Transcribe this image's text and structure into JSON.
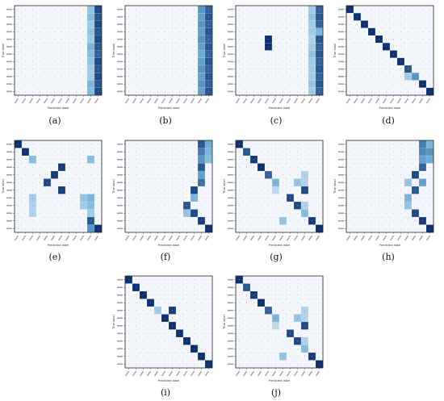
{
  "figure": {
    "captions": [
      "(a)",
      "(b)",
      "(c)",
      "(d)",
      "(e)",
      "(f)",
      "(g)",
      "(h)",
      "(i)",
      "(j)"
    ]
  },
  "chart_data": [
    {
      "type": "heatmap",
      "caption": "(a)",
      "xlabel": "Predicted label",
      "ylabel": "True label",
      "size": 12,
      "dark_cols": [
        11
      ],
      "light_cols": [
        10,
        9
      ],
      "cells": [
        [
          0,
          10,
          0.35
        ],
        [
          1,
          10,
          0.4
        ],
        [
          2,
          10,
          0.3
        ],
        [
          3,
          10,
          0.35
        ],
        [
          4,
          10,
          0.3
        ],
        [
          5,
          10,
          0.45
        ],
        [
          6,
          10,
          0.4
        ],
        [
          7,
          10,
          0.35
        ],
        [
          8,
          10,
          0.3
        ],
        [
          9,
          10,
          0.3
        ],
        [
          10,
          10,
          0.45
        ],
        [
          11,
          10,
          0.4
        ],
        [
          0,
          11,
          0.9
        ],
        [
          1,
          11,
          0.85
        ],
        [
          2,
          11,
          0.9
        ],
        [
          3,
          11,
          0.85
        ],
        [
          4,
          11,
          0.9
        ],
        [
          5,
          11,
          0.85
        ],
        [
          6,
          11,
          0.8
        ],
        [
          7,
          11,
          0.9
        ],
        [
          8,
          11,
          0.85
        ],
        [
          9,
          11,
          0.9
        ],
        [
          10,
          11,
          0.85
        ],
        [
          11,
          11,
          0.9
        ]
      ]
    },
    {
      "type": "heatmap",
      "caption": "(b)",
      "xlabel": "Predicted label",
      "ylabel": "True label",
      "size": 12,
      "cells": [
        [
          0,
          10,
          0.6
        ],
        [
          1,
          10,
          0.55
        ],
        [
          2,
          10,
          0.6
        ],
        [
          3,
          10,
          0.55
        ],
        [
          4,
          10,
          0.6
        ],
        [
          5,
          10,
          0.55
        ],
        [
          6,
          10,
          0.5
        ],
        [
          7,
          10,
          0.55
        ],
        [
          8,
          10,
          0.6
        ],
        [
          9,
          10,
          0.55
        ],
        [
          10,
          10,
          0.6
        ],
        [
          11,
          10,
          0.55
        ],
        [
          0,
          11,
          0.8
        ],
        [
          1,
          11,
          0.85
        ],
        [
          2,
          11,
          0.8
        ],
        [
          3,
          11,
          0.85
        ],
        [
          4,
          11,
          0.8
        ],
        [
          5,
          11,
          0.85
        ],
        [
          6,
          11,
          0.8
        ],
        [
          7,
          11,
          0.85
        ],
        [
          8,
          11,
          0.8
        ],
        [
          9,
          11,
          0.85
        ],
        [
          10,
          11,
          0.8
        ],
        [
          11,
          11,
          0.85
        ]
      ]
    },
    {
      "type": "heatmap",
      "caption": "(c)",
      "xlabel": "Predicted label",
      "ylabel": "True label",
      "size": 12,
      "cells": [
        [
          0,
          10,
          0.3
        ],
        [
          1,
          10,
          0.35
        ],
        [
          2,
          10,
          0.3
        ],
        [
          3,
          10,
          0.3
        ],
        [
          4,
          10,
          0.25
        ],
        [
          5,
          10,
          0.3
        ],
        [
          6,
          10,
          0.35
        ],
        [
          7,
          10,
          0.3
        ],
        [
          8,
          10,
          0.3
        ],
        [
          9,
          10,
          0.3
        ],
        [
          10,
          10,
          0.35
        ],
        [
          11,
          10,
          0.3
        ],
        [
          0,
          11,
          0.8
        ],
        [
          1,
          11,
          0.85
        ],
        [
          2,
          11,
          0.8
        ],
        [
          3,
          11,
          0.45
        ],
        [
          4,
          11,
          0.85
        ],
        [
          5,
          11,
          0.8
        ],
        [
          6,
          11,
          0.85
        ],
        [
          7,
          11,
          0.8
        ],
        [
          8,
          11,
          0.85
        ],
        [
          9,
          11,
          0.8
        ],
        [
          10,
          11,
          0.85
        ],
        [
          11,
          11,
          0.8
        ],
        [
          4,
          4,
          1
        ],
        [
          5,
          4,
          1
        ]
      ]
    },
    {
      "type": "heatmap",
      "caption": "(d)",
      "xlabel": "Predicted label",
      "ylabel": "True label",
      "size": 12,
      "cells": [
        [
          0,
          0,
          1
        ],
        [
          1,
          1,
          1
        ],
        [
          2,
          2,
          1
        ],
        [
          3,
          3,
          1
        ],
        [
          4,
          4,
          1
        ],
        [
          5,
          5,
          1
        ],
        [
          6,
          6,
          1
        ],
        [
          7,
          7,
          1
        ],
        [
          8,
          8,
          0.85
        ],
        [
          9,
          9,
          0.6
        ],
        [
          9,
          8,
          0.3
        ],
        [
          10,
          10,
          1
        ],
        [
          11,
          11,
          1
        ]
      ]
    },
    {
      "type": "heatmap",
      "caption": "(e)",
      "xlabel": "Predicted label",
      "ylabel": "True label",
      "size": 12,
      "cells": [
        [
          0,
          0,
          1
        ],
        [
          1,
          1,
          1
        ],
        [
          2,
          2,
          0.4
        ],
        [
          2,
          10,
          0.4
        ],
        [
          3,
          6,
          0.95
        ],
        [
          4,
          5,
          0.95
        ],
        [
          5,
          4,
          0.9
        ],
        [
          6,
          6,
          0.95
        ],
        [
          7,
          2,
          0.3
        ],
        [
          7,
          9,
          0.35
        ],
        [
          7,
          10,
          0.45
        ],
        [
          8,
          2,
          0.25
        ],
        [
          8,
          9,
          0.3
        ],
        [
          8,
          10,
          0.4
        ],
        [
          9,
          2,
          0.25
        ],
        [
          9,
          10,
          0.3
        ],
        [
          10,
          10,
          0.85
        ],
        [
          11,
          10,
          0.6
        ],
        [
          11,
          11,
          1
        ]
      ]
    },
    {
      "type": "heatmap",
      "caption": "(f)",
      "xlabel": "Predicted label",
      "ylabel": "True label",
      "size": 12,
      "cells": [
        [
          0,
          10,
          0.85
        ],
        [
          0,
          11,
          0.5
        ],
        [
          1,
          10,
          0.7
        ],
        [
          1,
          11,
          0.45
        ],
        [
          2,
          10,
          0.6
        ],
        [
          2,
          11,
          0.4
        ],
        [
          3,
          10,
          0.85
        ],
        [
          4,
          10,
          0.55
        ],
        [
          5,
          10,
          0.75
        ],
        [
          6,
          9,
          0.9
        ],
        [
          7,
          9,
          0.45
        ],
        [
          8,
          8,
          0.85
        ],
        [
          9,
          9,
          0.9
        ],
        [
          9,
          8,
          0.35
        ],
        [
          10,
          10,
          0.95
        ],
        [
          11,
          11,
          1
        ]
      ]
    },
    {
      "type": "heatmap",
      "caption": "(g)",
      "xlabel": "Predicted label",
      "ylabel": "True label",
      "size": 12,
      "cells": [
        [
          0,
          0,
          1
        ],
        [
          1,
          1,
          0.85
        ],
        [
          2,
          2,
          0.95
        ],
        [
          3,
          3,
          1
        ],
        [
          4,
          4,
          0.8
        ],
        [
          4,
          9,
          0.25
        ],
        [
          5,
          5,
          0.45
        ],
        [
          5,
          8,
          0.35
        ],
        [
          5,
          9,
          0.25
        ],
        [
          6,
          5,
          0.2
        ],
        [
          6,
          9,
          0.9
        ],
        [
          7,
          7,
          0.9
        ],
        [
          8,
          8,
          0.9
        ],
        [
          8,
          9,
          0.25
        ],
        [
          9,
          9,
          0.4
        ],
        [
          10,
          6,
          0.35
        ],
        [
          10,
          10,
          0.95
        ],
        [
          11,
          11,
          1
        ]
      ]
    },
    {
      "type": "heatmap",
      "caption": "(h)",
      "xlabel": "Predicted label",
      "ylabel": "True label",
      "size": 12,
      "cells": [
        [
          0,
          10,
          0.7
        ],
        [
          0,
          11,
          0.45
        ],
        [
          1,
          10,
          0.65
        ],
        [
          1,
          11,
          0.6
        ],
        [
          2,
          10,
          0.55
        ],
        [
          2,
          11,
          0.5
        ],
        [
          3,
          10,
          0.8
        ],
        [
          4,
          9,
          0.9
        ],
        [
          5,
          8,
          0.35
        ],
        [
          5,
          10,
          0.55
        ],
        [
          6,
          9,
          0.85
        ],
        [
          7,
          8,
          0.45
        ],
        [
          8,
          8,
          0.35
        ],
        [
          9,
          9,
          0.9
        ],
        [
          10,
          10,
          0.95
        ],
        [
          11,
          11,
          1
        ]
      ]
    },
    {
      "type": "heatmap",
      "caption": "(i)",
      "xlabel": "Predicted label",
      "ylabel": "True label",
      "size": 12,
      "cells": [
        [
          0,
          0,
          1
        ],
        [
          1,
          1,
          1
        ],
        [
          2,
          2,
          1
        ],
        [
          3,
          3,
          1
        ],
        [
          4,
          4,
          0.3
        ],
        [
          4,
          6,
          0.95
        ],
        [
          5,
          5,
          1
        ],
        [
          6,
          6,
          1
        ],
        [
          7,
          7,
          1
        ],
        [
          8,
          8,
          1
        ],
        [
          9,
          9,
          1
        ],
        [
          10,
          10,
          1
        ],
        [
          11,
          11,
          1
        ]
      ]
    },
    {
      "type": "heatmap",
      "caption": "(j)",
      "xlabel": "Predicted label",
      "ylabel": "True label",
      "size": 12,
      "cells": [
        [
          0,
          0,
          1
        ],
        [
          1,
          1,
          0.85
        ],
        [
          2,
          2,
          0.95
        ],
        [
          3,
          3,
          1
        ],
        [
          4,
          4,
          0.8
        ],
        [
          4,
          9,
          0.25
        ],
        [
          5,
          5,
          0.45
        ],
        [
          5,
          8,
          0.35
        ],
        [
          5,
          9,
          0.25
        ],
        [
          6,
          5,
          0.2
        ],
        [
          6,
          9,
          0.9
        ],
        [
          7,
          7,
          0.9
        ],
        [
          8,
          8,
          0.9
        ],
        [
          8,
          9,
          0.25
        ],
        [
          9,
          9,
          0.4
        ],
        [
          10,
          6,
          0.35
        ],
        [
          10,
          10,
          0.95
        ],
        [
          11,
          11,
          1
        ]
      ]
    }
  ]
}
